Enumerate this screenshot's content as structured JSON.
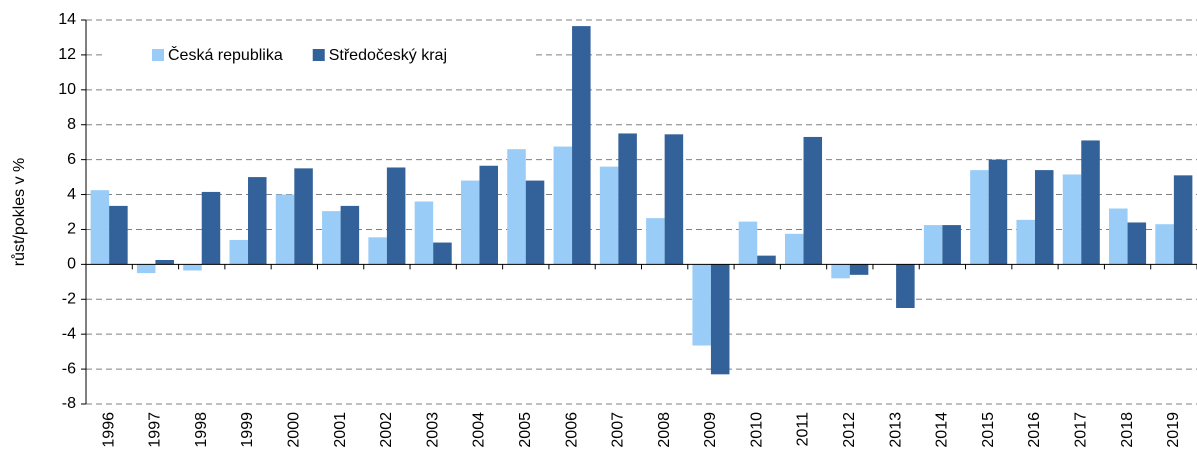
{
  "chart_data": {
    "type": "bar",
    "y_label": "růst/pokles v %",
    "categories": [
      "1996",
      "1997",
      "1998",
      "1999",
      "2000",
      "2001",
      "2002",
      "2003",
      "2004",
      "2005",
      "2006",
      "2007",
      "2008",
      "2009",
      "2010",
      "2011",
      "2012",
      "2013",
      "2014",
      "2015",
      "2016",
      "2017",
      "2018",
      "2019"
    ],
    "series": [
      {
        "name": "Česká republika",
        "color": "#99ccf7",
        "values": [
          4.25,
          -0.5,
          -0.35,
          1.4,
          4.0,
          3.05,
          1.55,
          3.6,
          4.8,
          6.6,
          6.75,
          5.6,
          2.65,
          -4.65,
          2.45,
          1.75,
          -0.8,
          0,
          2.25,
          5.4,
          2.55,
          5.15,
          3.2,
          2.3
        ]
      },
      {
        "name": "Středočeský kraj",
        "color": "#336199",
        "values": [
          3.35,
          0.25,
          4.15,
          5.0,
          5.5,
          3.35,
          5.55,
          1.25,
          5.65,
          4.8,
          13.65,
          7.5,
          7.45,
          -6.3,
          0.5,
          7.3,
          -0.6,
          -2.5,
          2.25,
          6.0,
          5.4,
          7.1,
          2.4,
          5.1
        ]
      }
    ],
    "ylim": [
      -8,
      14
    ],
    "yticks": [
      -8,
      -6,
      -4,
      -2,
      0,
      2,
      4,
      6,
      8,
      10,
      12,
      14
    ],
    "grid": true,
    "legend": "top-left"
  }
}
